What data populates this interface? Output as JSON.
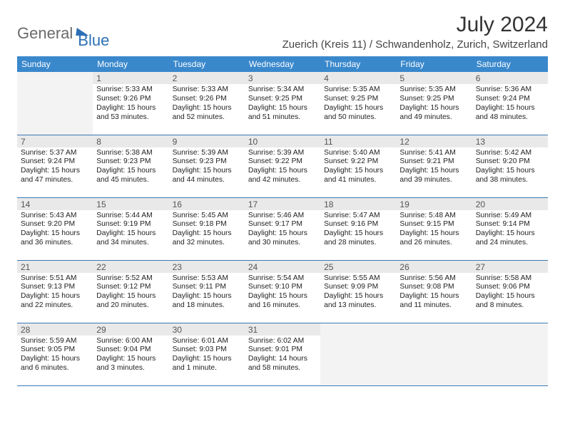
{
  "logo": {
    "part1": "General",
    "part2": "Blue"
  },
  "title": "July 2024",
  "location": "Zuerich (Kreis 11) / Schwandenholz, Zurich, Switzerland",
  "colors": {
    "header_bg": "#3a88cc",
    "header_text": "#ffffff",
    "rule": "#3a78b5",
    "daybar": "#e9e9e9",
    "logo_gray": "#6a6a6a",
    "logo_blue": "#2d6fb5"
  },
  "fonts": {
    "title_size": 30,
    "location_size": 15,
    "header_size": 12,
    "body_size": 10.3
  },
  "weekdays": [
    "Sunday",
    "Monday",
    "Tuesday",
    "Wednesday",
    "Thursday",
    "Friday",
    "Saturday"
  ],
  "weeks": [
    [
      {
        "day": "",
        "sunrise": "",
        "sunset": "",
        "daylight": ""
      },
      {
        "day": "1",
        "sunrise": "Sunrise: 5:33 AM",
        "sunset": "Sunset: 9:26 PM",
        "daylight": "Daylight: 15 hours and 53 minutes."
      },
      {
        "day": "2",
        "sunrise": "Sunrise: 5:33 AM",
        "sunset": "Sunset: 9:26 PM",
        "daylight": "Daylight: 15 hours and 52 minutes."
      },
      {
        "day": "3",
        "sunrise": "Sunrise: 5:34 AM",
        "sunset": "Sunset: 9:25 PM",
        "daylight": "Daylight: 15 hours and 51 minutes."
      },
      {
        "day": "4",
        "sunrise": "Sunrise: 5:35 AM",
        "sunset": "Sunset: 9:25 PM",
        "daylight": "Daylight: 15 hours and 50 minutes."
      },
      {
        "day": "5",
        "sunrise": "Sunrise: 5:35 AM",
        "sunset": "Sunset: 9:25 PM",
        "daylight": "Daylight: 15 hours and 49 minutes."
      },
      {
        "day": "6",
        "sunrise": "Sunrise: 5:36 AM",
        "sunset": "Sunset: 9:24 PM",
        "daylight": "Daylight: 15 hours and 48 minutes."
      }
    ],
    [
      {
        "day": "7",
        "sunrise": "Sunrise: 5:37 AM",
        "sunset": "Sunset: 9:24 PM",
        "daylight": "Daylight: 15 hours and 47 minutes."
      },
      {
        "day": "8",
        "sunrise": "Sunrise: 5:38 AM",
        "sunset": "Sunset: 9:23 PM",
        "daylight": "Daylight: 15 hours and 45 minutes."
      },
      {
        "day": "9",
        "sunrise": "Sunrise: 5:39 AM",
        "sunset": "Sunset: 9:23 PM",
        "daylight": "Daylight: 15 hours and 44 minutes."
      },
      {
        "day": "10",
        "sunrise": "Sunrise: 5:39 AM",
        "sunset": "Sunset: 9:22 PM",
        "daylight": "Daylight: 15 hours and 42 minutes."
      },
      {
        "day": "11",
        "sunrise": "Sunrise: 5:40 AM",
        "sunset": "Sunset: 9:22 PM",
        "daylight": "Daylight: 15 hours and 41 minutes."
      },
      {
        "day": "12",
        "sunrise": "Sunrise: 5:41 AM",
        "sunset": "Sunset: 9:21 PM",
        "daylight": "Daylight: 15 hours and 39 minutes."
      },
      {
        "day": "13",
        "sunrise": "Sunrise: 5:42 AM",
        "sunset": "Sunset: 9:20 PM",
        "daylight": "Daylight: 15 hours and 38 minutes."
      }
    ],
    [
      {
        "day": "14",
        "sunrise": "Sunrise: 5:43 AM",
        "sunset": "Sunset: 9:20 PM",
        "daylight": "Daylight: 15 hours and 36 minutes."
      },
      {
        "day": "15",
        "sunrise": "Sunrise: 5:44 AM",
        "sunset": "Sunset: 9:19 PM",
        "daylight": "Daylight: 15 hours and 34 minutes."
      },
      {
        "day": "16",
        "sunrise": "Sunrise: 5:45 AM",
        "sunset": "Sunset: 9:18 PM",
        "daylight": "Daylight: 15 hours and 32 minutes."
      },
      {
        "day": "17",
        "sunrise": "Sunrise: 5:46 AM",
        "sunset": "Sunset: 9:17 PM",
        "daylight": "Daylight: 15 hours and 30 minutes."
      },
      {
        "day": "18",
        "sunrise": "Sunrise: 5:47 AM",
        "sunset": "Sunset: 9:16 PM",
        "daylight": "Daylight: 15 hours and 28 minutes."
      },
      {
        "day": "19",
        "sunrise": "Sunrise: 5:48 AM",
        "sunset": "Sunset: 9:15 PM",
        "daylight": "Daylight: 15 hours and 26 minutes."
      },
      {
        "day": "20",
        "sunrise": "Sunrise: 5:49 AM",
        "sunset": "Sunset: 9:14 PM",
        "daylight": "Daylight: 15 hours and 24 minutes."
      }
    ],
    [
      {
        "day": "21",
        "sunrise": "Sunrise: 5:51 AM",
        "sunset": "Sunset: 9:13 PM",
        "daylight": "Daylight: 15 hours and 22 minutes."
      },
      {
        "day": "22",
        "sunrise": "Sunrise: 5:52 AM",
        "sunset": "Sunset: 9:12 PM",
        "daylight": "Daylight: 15 hours and 20 minutes."
      },
      {
        "day": "23",
        "sunrise": "Sunrise: 5:53 AM",
        "sunset": "Sunset: 9:11 PM",
        "daylight": "Daylight: 15 hours and 18 minutes."
      },
      {
        "day": "24",
        "sunrise": "Sunrise: 5:54 AM",
        "sunset": "Sunset: 9:10 PM",
        "daylight": "Daylight: 15 hours and 16 minutes."
      },
      {
        "day": "25",
        "sunrise": "Sunrise: 5:55 AM",
        "sunset": "Sunset: 9:09 PM",
        "daylight": "Daylight: 15 hours and 13 minutes."
      },
      {
        "day": "26",
        "sunrise": "Sunrise: 5:56 AM",
        "sunset": "Sunset: 9:08 PM",
        "daylight": "Daylight: 15 hours and 11 minutes."
      },
      {
        "day": "27",
        "sunrise": "Sunrise: 5:58 AM",
        "sunset": "Sunset: 9:06 PM",
        "daylight": "Daylight: 15 hours and 8 minutes."
      }
    ],
    [
      {
        "day": "28",
        "sunrise": "Sunrise: 5:59 AM",
        "sunset": "Sunset: 9:05 PM",
        "daylight": "Daylight: 15 hours and 6 minutes."
      },
      {
        "day": "29",
        "sunrise": "Sunrise: 6:00 AM",
        "sunset": "Sunset: 9:04 PM",
        "daylight": "Daylight: 15 hours and 3 minutes."
      },
      {
        "day": "30",
        "sunrise": "Sunrise: 6:01 AM",
        "sunset": "Sunset: 9:03 PM",
        "daylight": "Daylight: 15 hours and 1 minute."
      },
      {
        "day": "31",
        "sunrise": "Sunrise: 6:02 AM",
        "sunset": "Sunset: 9:01 PM",
        "daylight": "Daylight: 14 hours and 58 minutes."
      },
      {
        "day": "",
        "sunrise": "",
        "sunset": "",
        "daylight": ""
      },
      {
        "day": "",
        "sunrise": "",
        "sunset": "",
        "daylight": ""
      },
      {
        "day": "",
        "sunrise": "",
        "sunset": "",
        "daylight": ""
      }
    ]
  ]
}
